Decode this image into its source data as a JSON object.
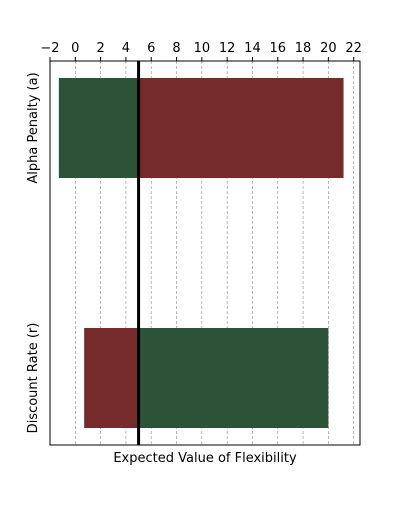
{
  "chart_data": {
    "type": "bar",
    "orientation": "horizontal",
    "style": "tornado",
    "title": "",
    "xlabel": "Expected Value of Flexibility",
    "ylabel": "",
    "x_axis_position": "top",
    "xlim": [
      -2.0,
      22.5
    ],
    "xticks": [
      -2,
      0,
      2,
      4,
      6,
      8,
      10,
      12,
      14,
      16,
      18,
      20,
      22
    ],
    "xtick_labels": [
      "−2",
      "0",
      "2",
      "4",
      "6",
      "8",
      "10",
      "12",
      "14",
      "16",
      "18",
      "20",
      "22"
    ],
    "grid": {
      "x": true,
      "y": false,
      "style": "dashed"
    },
    "base_value": 5.0,
    "categories": [
      "Alpha Penalty (a)",
      "Discount Rate (r)"
    ],
    "segments": [
      {
        "category": "Alpha Penalty (a)",
        "left_start": -1.3,
        "left_color": "#2c5237",
        "right_end": 21.2,
        "right_color": "#752a2b"
      },
      {
        "category": "Discount Rate (r)",
        "left_start": 0.7,
        "left_color": "#752a2b",
        "right_end": 20.0,
        "right_color": "#2c5237"
      }
    ],
    "baseline_color": "#000000"
  }
}
